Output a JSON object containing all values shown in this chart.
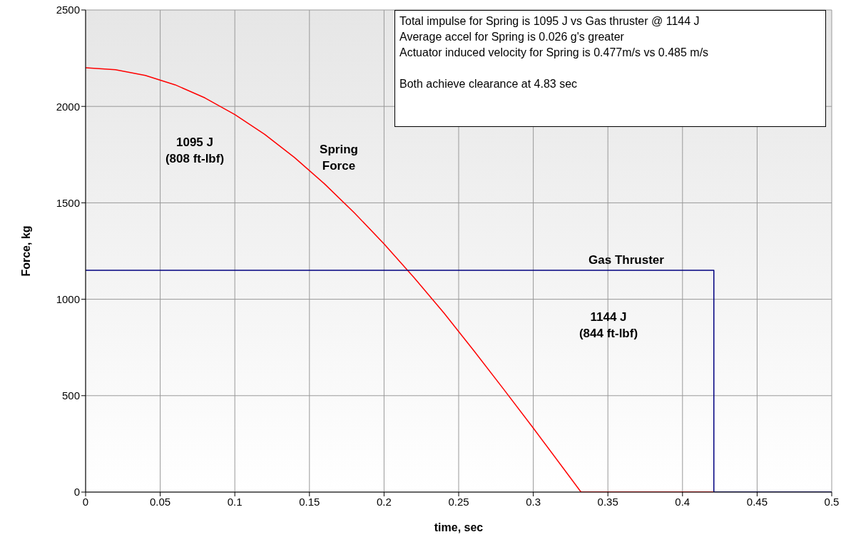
{
  "chart_data": {
    "type": "line",
    "xlabel": "time, sec",
    "ylabel": "Force, kg",
    "xlim": [
      0,
      0.5
    ],
    "xticks": [
      0,
      0.05,
      0.1,
      0.15,
      0.2,
      0.25,
      0.3,
      0.35,
      0.4,
      0.45,
      0.5
    ],
    "ylim": [
      0,
      2500
    ],
    "yticks": [
      0,
      500,
      1000,
      1500,
      2000,
      2500
    ],
    "grid": true,
    "marker": "none",
    "line_style": "solid",
    "series": [
      {
        "name": "Spring Force",
        "color": "#ff0000",
        "x": [
          0,
          0.02,
          0.04,
          0.06,
          0.08,
          0.1,
          0.12,
          0.14,
          0.16,
          0.18,
          0.2,
          0.22,
          0.24,
          0.26,
          0.28,
          0.3,
          0.32,
          0.332,
          0.421
        ],
        "values": [
          2200,
          2190,
          2161,
          2112,
          2044,
          1958,
          1855,
          1735,
          1599,
          1449,
          1287,
          1113,
          930,
          735,
          535,
          332,
          125,
          0,
          0
        ]
      },
      {
        "name": "Gas Thruster",
        "color": "#000080",
        "x": [
          0,
          0.421,
          0.421,
          0.5
        ],
        "values": [
          1150,
          1150,
          0,
          0
        ]
      }
    ],
    "annotations": [
      "Total impulse for Spring is 1095 J vs Gas thruster @ 1144 J",
      "Average accel for Spring is 0.026 g's greater",
      "Actuator induced velocity for Spring is 0.477m/s vs 0.485 m/s",
      "Both achieve clearance at 4.83 sec",
      "1095 J\n(808 ft-lbf)",
      "1144 J\n(844 ft-lbf)"
    ]
  }
}
